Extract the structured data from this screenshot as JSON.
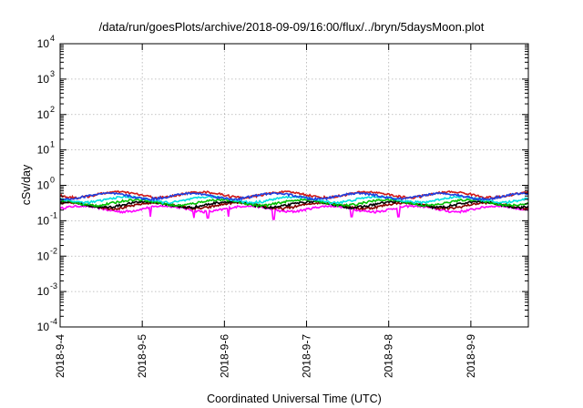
{
  "chart_data": {
    "type": "line",
    "title": "/data/run/goesPlots/archive/2018-09-09/16:00/flux/../bryn/5daysMoon.plot",
    "xlabel": "Coordinated Universal Time (UTC)",
    "ylabel": "cSv/day",
    "yscale": "log",
    "ylim": [
      0.0001,
      10000
    ],
    "xlim": [
      0,
      5.7
    ],
    "grid": true,
    "legend": "none",
    "x_ticks": [
      {
        "value": 0,
        "label": "2018-9-4"
      },
      {
        "value": 1,
        "label": "2018-9-5"
      },
      {
        "value": 2,
        "label": "2018-9-6"
      },
      {
        "value": 3,
        "label": "2018-9-7"
      },
      {
        "value": 4,
        "label": "2018-9-8"
      },
      {
        "value": 5,
        "label": "2018-9-9"
      }
    ],
    "y_ticks": [
      {
        "value": 0.0001,
        "base": "10",
        "exp": "-4"
      },
      {
        "value": 0.001,
        "base": "10",
        "exp": "-3"
      },
      {
        "value": 0.01,
        "base": "10",
        "exp": "-2"
      },
      {
        "value": 0.1,
        "base": "10",
        "exp": "-1"
      },
      {
        "value": 1,
        "base": "10",
        "exp": "0"
      },
      {
        "value": 10,
        "base": "10",
        "exp": "1"
      },
      {
        "value": 100,
        "base": "10",
        "exp": "2"
      },
      {
        "value": 1000,
        "base": "10",
        "exp": "3"
      },
      {
        "value": 10000,
        "base": "10",
        "exp": "4"
      }
    ],
    "series": [
      {
        "color": "#ff00ff",
        "base": 0.22,
        "dips": [
          [
            1.1,
            0.13
          ],
          [
            1.63,
            0.12
          ],
          [
            1.8,
            0.12
          ],
          [
            2.05,
            0.13
          ],
          [
            2.6,
            0.11
          ],
          [
            3.55,
            0.13
          ],
          [
            4.12,
            0.13
          ]
        ]
      },
      {
        "color": "#8b0000",
        "base": 0.27,
        "dips": []
      },
      {
        "color": "#000000",
        "base": 0.29,
        "dips": []
      },
      {
        "color": "#00c000",
        "base": 0.33,
        "dips": []
      },
      {
        "color": "#00e0e0",
        "base": 0.4,
        "dips": []
      },
      {
        "color": "#d01818",
        "base": 0.55,
        "dips": []
      },
      {
        "color": "#2040e0",
        "base": 0.5,
        "dips": []
      }
    ]
  }
}
